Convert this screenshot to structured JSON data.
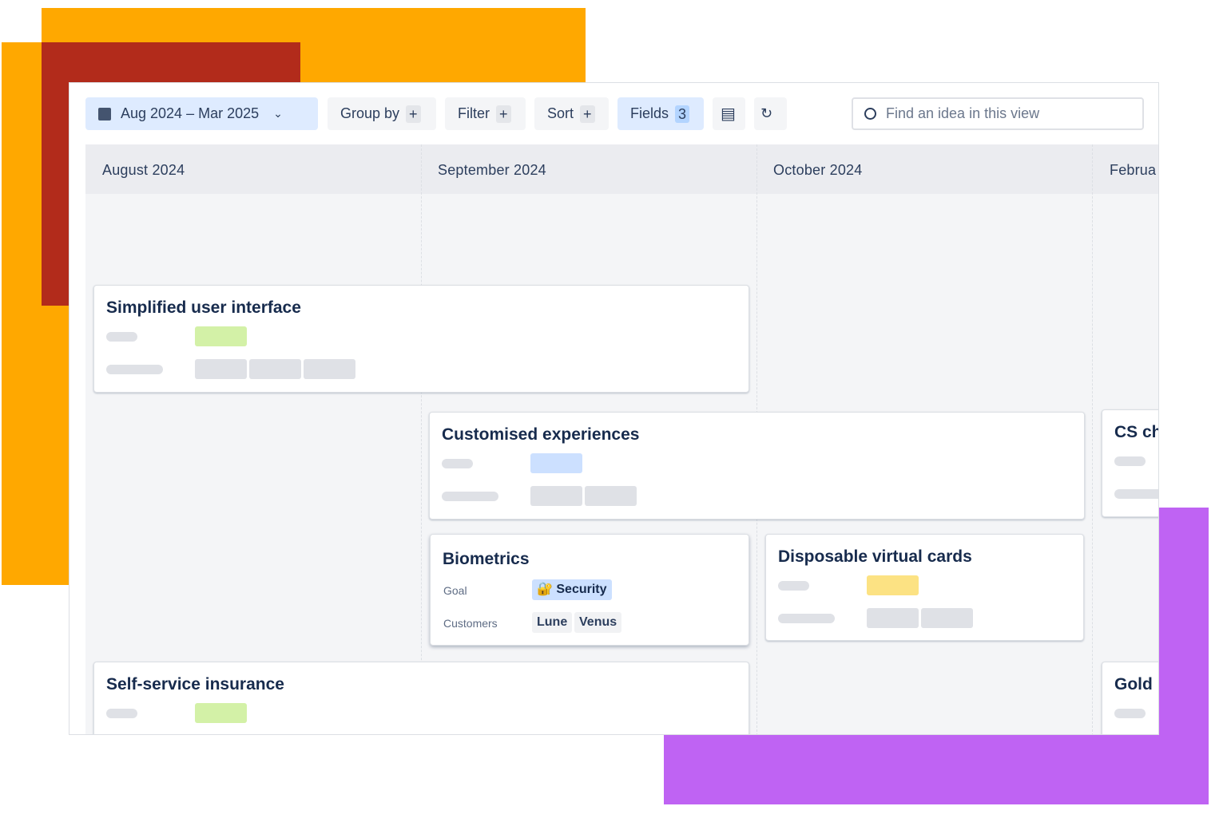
{
  "colors": {
    "orange": "#ffa800",
    "red": "#b22b1b",
    "purple": "#bf63f3",
    "accent": "#deebff"
  },
  "toolbar": {
    "date_range": "Aug 2024 – Mar 2025",
    "group_by": "Group by",
    "filter": "Filter",
    "sort": "Sort",
    "fields": "Fields",
    "fields_count": "3",
    "plus": "+",
    "search_placeholder": "Find an idea in this view"
  },
  "columns": [
    "August 2024",
    "September 2024",
    "October 2024",
    "Februa"
  ],
  "cards": {
    "simplified": {
      "title": "Simplified user interface"
    },
    "customised": {
      "title": "Customised experiences"
    },
    "cs": {
      "title": "CS ch"
    },
    "biometrics": {
      "title": "Biometrics",
      "goal_label": "Goal",
      "goal_value": "Security",
      "customers_label": "Customers",
      "customers": [
        "Lune",
        "Venus"
      ]
    },
    "disposable": {
      "title": "Disposable virtual cards"
    },
    "self_service": {
      "title": "Self-service insurance"
    },
    "gold": {
      "title": "Gold i"
    }
  }
}
